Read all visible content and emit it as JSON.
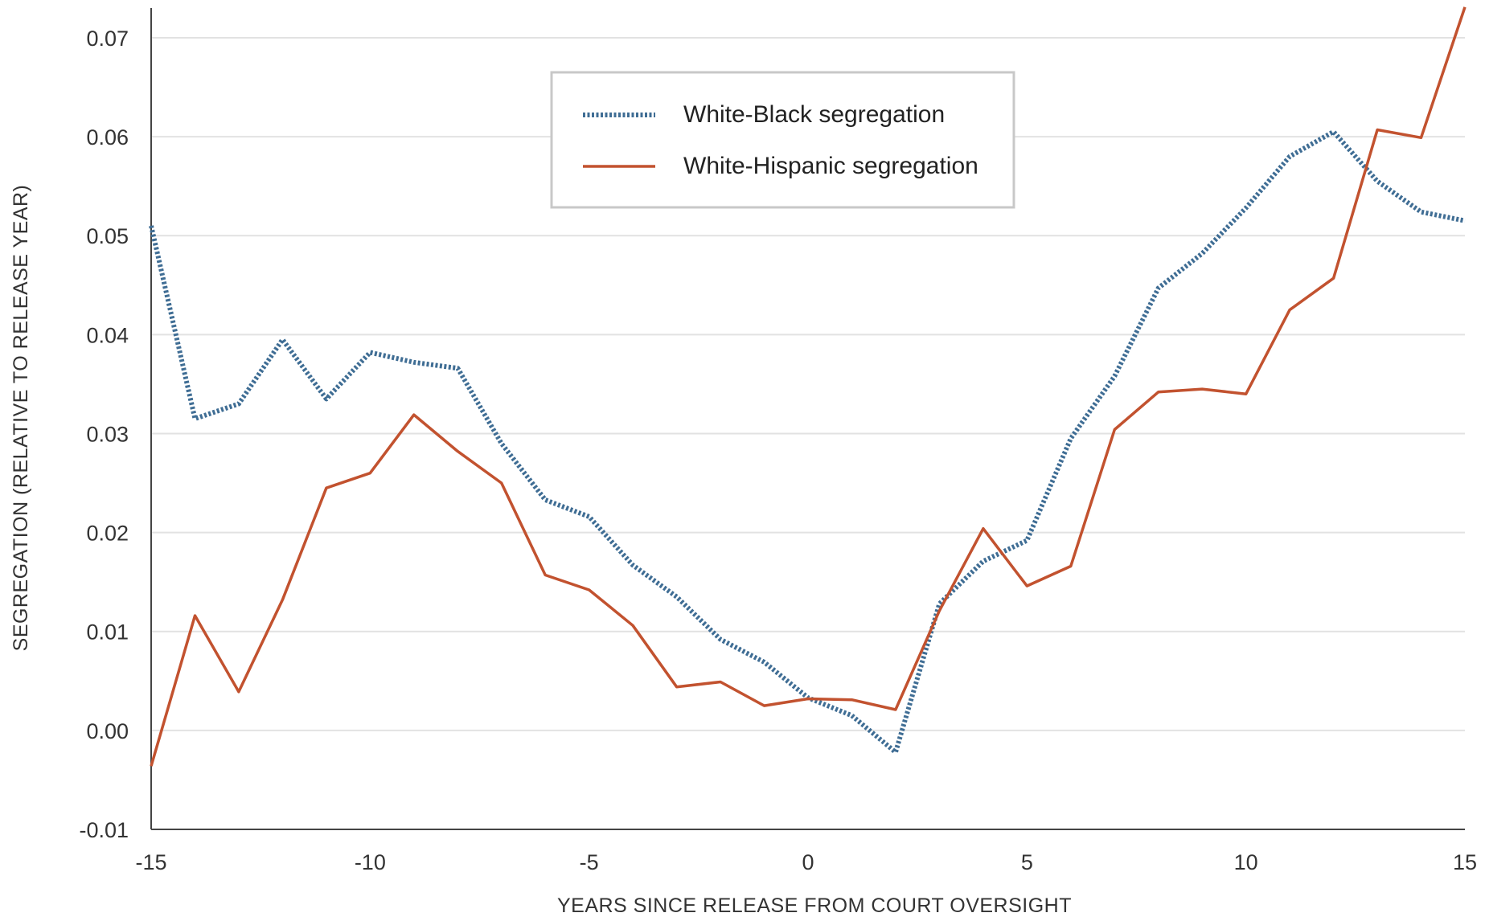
{
  "chart_data": {
    "type": "line",
    "title": "",
    "xlabel": "YEARS SINCE RELEASE FROM COURT OVERSIGHT",
    "ylabel": "SEGREGATION (RELATIVE TO RELEASE YEAR)",
    "xlim": [
      -15,
      15
    ],
    "ylim": [
      -0.01,
      0.073
    ],
    "xticks": [
      -15,
      -10,
      -5,
      0,
      5,
      10,
      15
    ],
    "xtick_labels": [
      "-15",
      "-10",
      "-5",
      "0",
      "5",
      "10",
      "15"
    ],
    "yticks": [
      -0.01,
      0.0,
      0.01,
      0.02,
      0.03,
      0.04,
      0.05,
      0.06,
      0.07
    ],
    "ytick_labels": [
      "-0.01",
      "0.00",
      "0.01",
      "0.02",
      "0.03",
      "0.04",
      "0.05",
      "0.06",
      "0.07"
    ],
    "grid": "horizontal",
    "legend_position": "top-center",
    "x": [
      -15,
      -14,
      -13,
      -12,
      -11,
      -10,
      -9,
      -8,
      -7,
      -6,
      -5,
      -4,
      -3,
      -2,
      -1,
      0,
      1,
      2,
      3,
      4,
      5,
      6,
      7,
      8,
      9,
      10,
      11,
      12,
      13,
      14,
      15
    ],
    "series": [
      {
        "name": "White-Black segregation",
        "color": "#3f6d94",
        "style": "dotted",
        "values": [
          0.051,
          0.0315,
          0.033,
          0.0395,
          0.0335,
          0.0382,
          0.0372,
          0.0366,
          0.029,
          0.0233,
          0.0216,
          0.0167,
          0.0135,
          0.0092,
          0.0069,
          0.0033,
          0.0015,
          -0.0022,
          0.0128,
          0.0171,
          0.0192,
          0.0295,
          0.0358,
          0.0447,
          0.0482,
          0.0528,
          0.058,
          0.0605,
          0.0555,
          0.0524,
          0.0515
        ]
      },
      {
        "name": "White-Hispanic segregation",
        "color": "#c2522f",
        "style": "solid",
        "values": [
          -0.0036,
          0.0116,
          0.0039,
          0.0132,
          0.0245,
          0.026,
          0.0319,
          0.0282,
          0.025,
          0.0157,
          0.0142,
          0.0106,
          0.0044,
          0.0049,
          0.0025,
          0.0032,
          0.0031,
          0.0021,
          0.0121,
          0.0204,
          0.0146,
          0.0166,
          0.0304,
          0.0342,
          0.0345,
          0.034,
          0.0425,
          0.0457,
          0.0607,
          0.0599,
          0.0731
        ]
      }
    ]
  }
}
